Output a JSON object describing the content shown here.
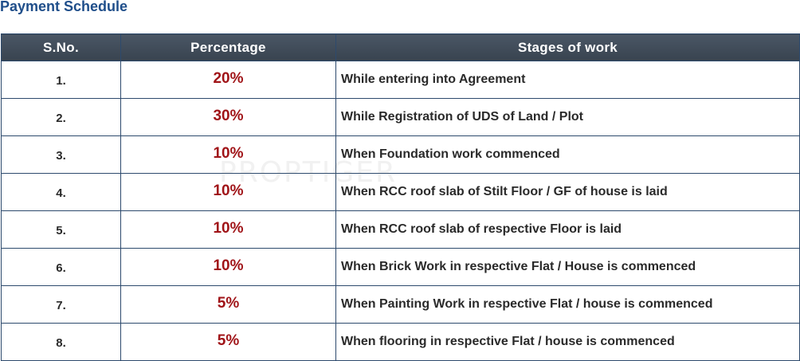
{
  "page": {
    "title": "Payment Schedule"
  },
  "table": {
    "headers": {
      "sno": "S.No.",
      "percentage": "Percentage",
      "stages": "Stages of work"
    },
    "rows": [
      {
        "sno": "1.",
        "percentage": "20%",
        "stage": "While entering into Agreement"
      },
      {
        "sno": "2.",
        "percentage": "30%",
        "stage": "While Registration of UDS of Land / Plot"
      },
      {
        "sno": "3.",
        "percentage": "10%",
        "stage": "When Foundation work commenced"
      },
      {
        "sno": "4.",
        "percentage": "10%",
        "stage": "When RCC roof slab of Stilt Floor / GF of house is laid"
      },
      {
        "sno": "5.",
        "percentage": "10%",
        "stage": "When RCC roof slab of respective Floor is laid"
      },
      {
        "sno": "6.",
        "percentage": "10%",
        "stage": "When Brick Work in respective Flat / House is commenced"
      },
      {
        "sno": "7.",
        "percentage": "5%",
        "stage": "When Painting Work in respective Flat / house is commenced"
      },
      {
        "sno": "8.",
        "percentage": "5%",
        "stage": "When flooring in respective Flat / house is commenced"
      }
    ]
  },
  "watermark": {
    "text": "PROPTIGER"
  },
  "colors": {
    "title": "#1f4e8a",
    "header_bg": "#3f4b5a",
    "percentage_text": "#a01418",
    "border": "#2d4a6d"
  }
}
